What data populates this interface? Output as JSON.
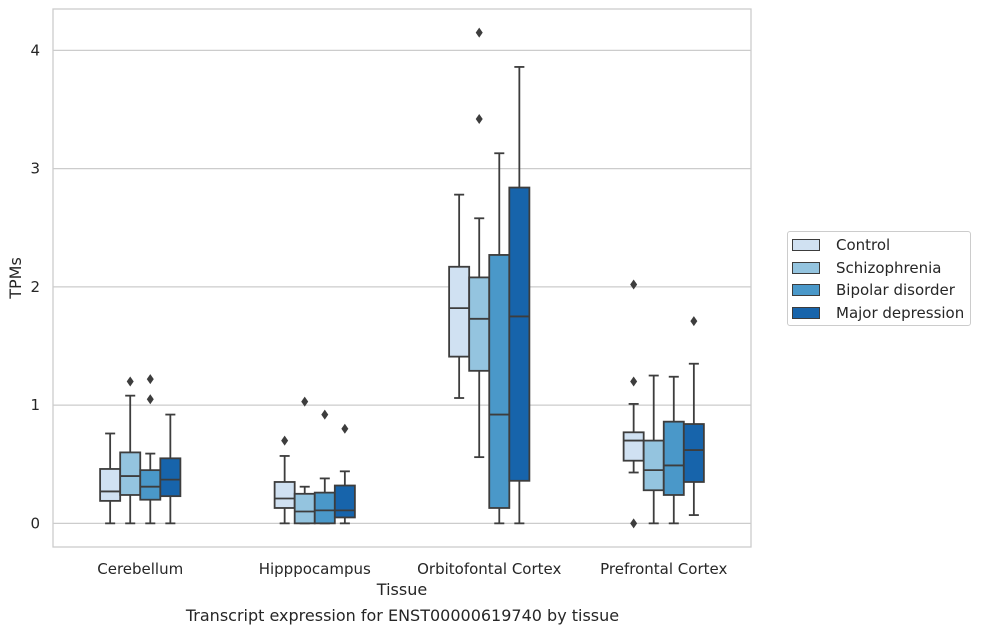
{
  "chart_data": {
    "type": "box",
    "title": "",
    "caption": "Transcript expression for ENST00000619740 by tissue",
    "xlabel": "Tissue",
    "ylabel": "TPMs",
    "ylim": [
      -0.2,
      4.35
    ],
    "yticks": [
      0,
      1,
      2,
      3,
      4
    ],
    "grid": true,
    "legend_position": "right",
    "categories": [
      "Cerebellum",
      "Hipppocampus",
      "Orbitofontal Cortex",
      "Prefrontal Cortex"
    ],
    "series": [
      {
        "name": "Control",
        "color": "#d0e1f2",
        "boxes": [
          {
            "whisker_low": 0.0,
            "q1": 0.19,
            "median": 0.27,
            "q3": 0.46,
            "whisker_high": 0.76,
            "outliers": []
          },
          {
            "whisker_low": 0.0,
            "q1": 0.13,
            "median": 0.21,
            "q3": 0.35,
            "whisker_high": 0.57,
            "outliers": [
              0.7
            ]
          },
          {
            "whisker_low": 1.06,
            "q1": 1.41,
            "median": 1.82,
            "q3": 2.17,
            "whisker_high": 2.78,
            "outliers": []
          },
          {
            "whisker_low": 0.43,
            "q1": 0.53,
            "median": 0.7,
            "q3": 0.77,
            "whisker_high": 1.01,
            "outliers": [
              0.0,
              1.2,
              2.02
            ]
          }
        ]
      },
      {
        "name": "Schizophrenia",
        "color": "#94c4df",
        "boxes": [
          {
            "whisker_low": 0.0,
            "q1": 0.24,
            "median": 0.4,
            "q3": 0.6,
            "whisker_high": 1.08,
            "outliers": [
              1.2
            ]
          },
          {
            "whisker_low": 0.0,
            "q1": 0.0,
            "median": 0.1,
            "q3": 0.25,
            "whisker_high": 0.31,
            "outliers": [
              1.03
            ]
          },
          {
            "whisker_low": 0.56,
            "q1": 1.29,
            "median": 1.73,
            "q3": 2.08,
            "whisker_high": 2.58,
            "outliers": [
              3.42,
              4.15
            ]
          },
          {
            "whisker_low": 0.0,
            "q1": 0.28,
            "median": 0.45,
            "q3": 0.7,
            "whisker_high": 1.25,
            "outliers": []
          }
        ]
      },
      {
        "name": "Bipolar disorder",
        "color": "#4a98c9",
        "boxes": [
          {
            "whisker_low": 0.0,
            "q1": 0.2,
            "median": 0.31,
            "q3": 0.45,
            "whisker_high": 0.59,
            "outliers": [
              1.05,
              1.22
            ]
          },
          {
            "whisker_low": 0.0,
            "q1": 0.0,
            "median": 0.11,
            "q3": 0.26,
            "whisker_high": 0.38,
            "outliers": [
              0.92
            ]
          },
          {
            "whisker_low": 0.0,
            "q1": 0.13,
            "median": 0.92,
            "q3": 2.27,
            "whisker_high": 3.13,
            "outliers": []
          },
          {
            "whisker_low": 0.0,
            "q1": 0.24,
            "median": 0.49,
            "q3": 0.86,
            "whisker_high": 1.24,
            "outliers": []
          }
        ]
      },
      {
        "name": "Major depression",
        "color": "#1764ab",
        "boxes": [
          {
            "whisker_low": 0.0,
            "q1": 0.23,
            "median": 0.37,
            "q3": 0.55,
            "whisker_high": 0.92,
            "outliers": []
          },
          {
            "whisker_low": 0.0,
            "q1": 0.05,
            "median": 0.11,
            "q3": 0.32,
            "whisker_high": 0.44,
            "outliers": [
              0.8
            ]
          },
          {
            "whisker_low": 0.0,
            "q1": 0.36,
            "median": 1.75,
            "q3": 2.84,
            "whisker_high": 3.86,
            "outliers": []
          },
          {
            "whisker_low": 0.07,
            "q1": 0.35,
            "median": 0.62,
            "q3": 0.84,
            "whisker_high": 1.35,
            "outliers": [
              1.71
            ]
          }
        ]
      }
    ]
  }
}
